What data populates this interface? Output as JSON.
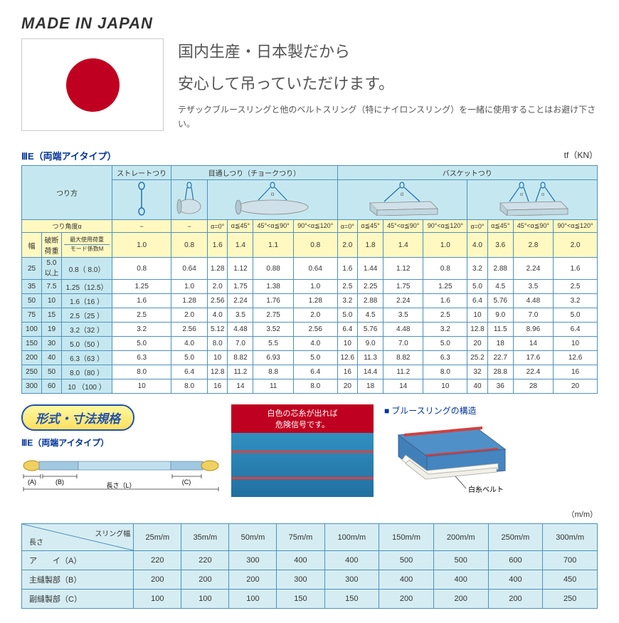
{
  "header": {
    "made_in": "MADE IN JAPAN",
    "headline1": "国内生産・日本製だから",
    "headline2": "安心して吊っていただけます。",
    "subtext": "テザックブルースリングと他のベルトスリング（特にナイロンスリング）を一緒に使用することはお避け下さい。"
  },
  "table1": {
    "title": "ⅢE（両端アイタイプ）",
    "unit": "tf（KN）",
    "method_label": "つり方",
    "methods": [
      "ストレートつり",
      "目通しつり（チョークつり）",
      "バスケットつり"
    ],
    "angle_label": "つり角度α",
    "angles": [
      "−",
      "−",
      "α=0°",
      "α≦45°",
      "45°<α≦90°",
      "90°<α≦120°",
      "α=0°",
      "α≦45°",
      "45°<α≦90°",
      "90°<α≦120°",
      "α=0°",
      "α≦45°",
      "45°<α≦90°",
      "90°<α≦120°"
    ],
    "width_label": "幅",
    "break_label": "破断荷重",
    "max_label": "最大使用荷重",
    "mode_label": "モード係数M",
    "factors": [
      "1.0",
      "0.8",
      "1.6",
      "1.4",
      "1.1",
      "0.8",
      "2.0",
      "1.8",
      "1.4",
      "1.0",
      "4.0",
      "3.6",
      "2.8",
      "2.0"
    ],
    "rows": [
      [
        "25",
        "5.0以上",
        "0.8（ 8.0）",
        "0.8",
        "0.64",
        "1.28",
        "1.12",
        "0.88",
        "0.64",
        "1.6",
        "1.44",
        "1.12",
        "0.8",
        "3.2",
        "2.88",
        "2.24",
        "1.6"
      ],
      [
        "35",
        "7.5",
        "1.25（12.5）",
        "1.25",
        "1.0",
        "2.0",
        "1.75",
        "1.38",
        "1.0",
        "2.5",
        "2.25",
        "1.75",
        "1.25",
        "5.0",
        "4.5",
        "3.5",
        "2.5"
      ],
      [
        "50",
        "10",
        "1.6（16 ）",
        "1.6",
        "1.28",
        "2.56",
        "2.24",
        "1.76",
        "1.28",
        "3.2",
        "2.88",
        "2.24",
        "1.6",
        "6.4",
        "5.76",
        "4.48",
        "3.2"
      ],
      [
        "75",
        "15",
        "2.5（25 ）",
        "2.5",
        "2.0",
        "4.0",
        "3.5",
        "2.75",
        "2.0",
        "5.0",
        "4.5",
        "3.5",
        "2.5",
        "10",
        "9.0",
        "7.0",
        "5.0"
      ],
      [
        "100",
        "19",
        "3.2（32 ）",
        "3.2",
        "2.56",
        "5.12",
        "4.48",
        "3.52",
        "2.56",
        "6.4",
        "5.76",
        "4.48",
        "3.2",
        "12.8",
        "11.5",
        "8.96",
        "6.4"
      ],
      [
        "150",
        "30",
        "5.0（50 ）",
        "5.0",
        "4.0",
        "8.0",
        "7.0",
        "5.5",
        "4.0",
        "10",
        "9.0",
        "7.0",
        "5.0",
        "20",
        "18",
        "14",
        "10"
      ],
      [
        "200",
        "40",
        "6.3（63 ）",
        "6.3",
        "5.0",
        "10",
        "8.82",
        "6.93",
        "5.0",
        "12.6",
        "11.3",
        "8.82",
        "6.3",
        "25.2",
        "22.7",
        "17.6",
        "12.6"
      ],
      [
        "250",
        "50",
        "8.0（80 ）",
        "8.0",
        "6.4",
        "12.8",
        "11.2",
        "8.8",
        "6.4",
        "16",
        "14.4",
        "11.2",
        "8.0",
        "32",
        "28.8",
        "22.4",
        "16"
      ],
      [
        "300",
        "60",
        "10 （100 ）",
        "10",
        "8.0",
        "16",
        "14",
        "11",
        "8.0",
        "20",
        "18",
        "14",
        "10",
        "40",
        "36",
        "28",
        "20"
      ]
    ]
  },
  "mid": {
    "format_title": "形式・寸法規格",
    "type_label": "ⅢE（両端アイタイプ）",
    "dim_a": "(A)",
    "dim_b": "(B)",
    "dim_c": "(C)",
    "dim_l": "長さ（L）",
    "warning1": "白色の芯糸が出れば",
    "warning2": "危険信号です。",
    "structure_title": "ブルースリングの構造",
    "structure_label": "白糸ベルト"
  },
  "table2": {
    "unit": "（m/m）",
    "corner_label": "長さ＼スリング幅",
    "headers": [
      "25m/m",
      "35m/m",
      "50m/m",
      "75m/m",
      "100m/m",
      "150m/m",
      "200m/m",
      "250m/m",
      "300m/m"
    ],
    "rows": [
      {
        "label": "ア　　イ（A）",
        "vals": [
          "220",
          "220",
          "300",
          "400",
          "400",
          "500",
          "500",
          "600",
          "700"
        ]
      },
      {
        "label": "主縫製部（B）",
        "vals": [
          "200",
          "200",
          "200",
          "300",
          "300",
          "400",
          "400",
          "400",
          "450"
        ]
      },
      {
        "label": "副縫製部（C）",
        "vals": [
          "100",
          "100",
          "100",
          "150",
          "150",
          "200",
          "200",
          "200",
          "250"
        ]
      }
    ]
  },
  "colors": {
    "table_border": "#5090c0",
    "header_bg": "#c5e8f0",
    "yellow_bg": "#fff8c0",
    "blue_text": "#003399",
    "red": "#c00020"
  }
}
